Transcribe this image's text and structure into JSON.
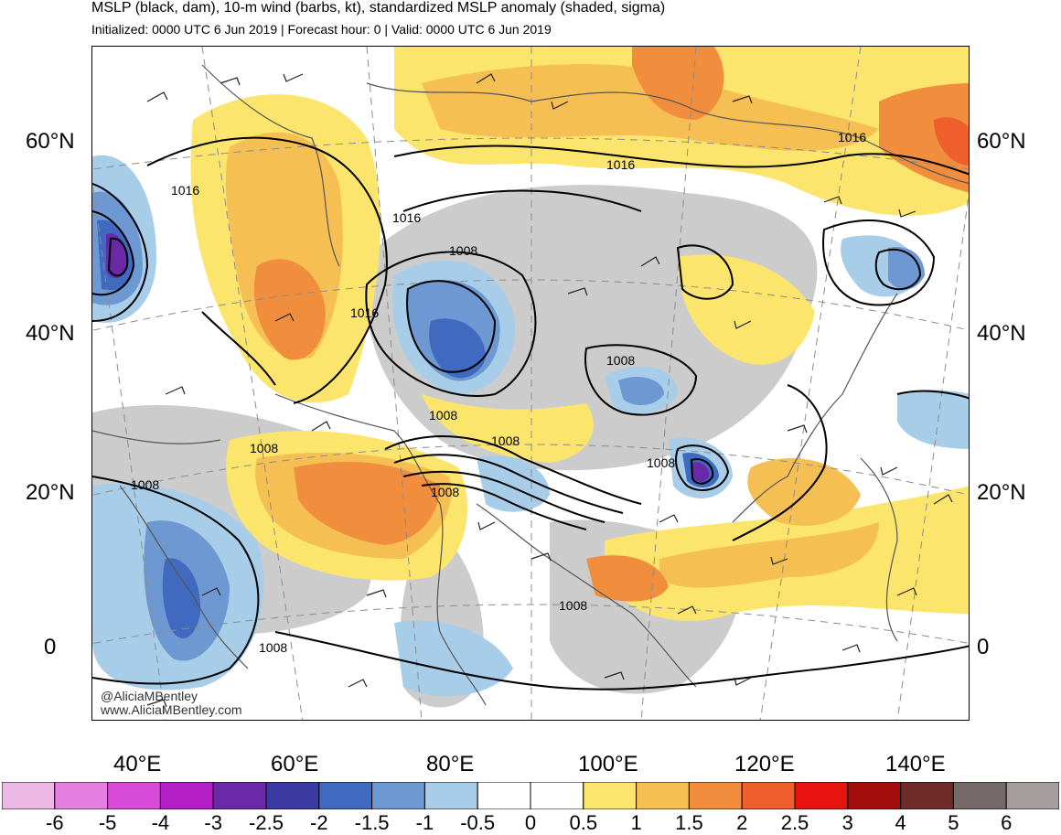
{
  "header": {
    "title": "MSLP (black, dam), 10-m wind (barbs, kt), standardized MSLP anomaly (shaded, sigma)",
    "subtitle": "Initialized: 0000 UTC 6 Jun 2019 | Forecast hour: 0 | Valid: 0000 UTC 6 Jun 2019"
  },
  "axes": {
    "lat_left": [
      "60°N",
      "40°N",
      "20°N",
      "0"
    ],
    "lat_right": [
      "60°N",
      "40°N",
      "20°N",
      "0"
    ],
    "lon_bottom": [
      "40°E",
      "60°E",
      "80°E",
      "100°E",
      "120°E",
      "140°E"
    ]
  },
  "contour_labels": [
    "1016",
    "1016",
    "1016",
    "1016",
    "1008",
    "1008",
    "1016",
    "1008",
    "1008",
    "1008",
    "1008",
    "1008",
    "1008",
    "1008",
    "1008"
  ],
  "credit": {
    "handle": "@AliciaMBentley",
    "site": "www.AliciaMBentley.com"
  },
  "colorbar": {
    "labels": [
      "-6",
      "-5",
      "-4",
      "-3",
      "-2.5",
      "-2",
      "-1.5",
      "-1",
      "-0.5",
      "0",
      "0.5",
      "1",
      "1.5",
      "2",
      "2.5",
      "3",
      "4",
      "5",
      "6"
    ],
    "colors": [
      "#ecb8e6",
      "#e57fe2",
      "#d74bd8",
      "#b31ec6",
      "#6a2aa8",
      "#3a3aa0",
      "#3f6abf",
      "#6d98d2",
      "#a8cde9",
      "#ffffff",
      "#ffffff",
      "#fbe56d",
      "#f5bf53",
      "#f08e3d",
      "#ef5f2e",
      "#e8130f",
      "#a30d0b",
      "#6f2b28",
      "#756a69",
      "#a69e9d"
    ]
  },
  "colors": {
    "land_border": "#555555",
    "contour": "#000000",
    "grid": "#8c8c8c",
    "neutral": "#cccccc"
  }
}
